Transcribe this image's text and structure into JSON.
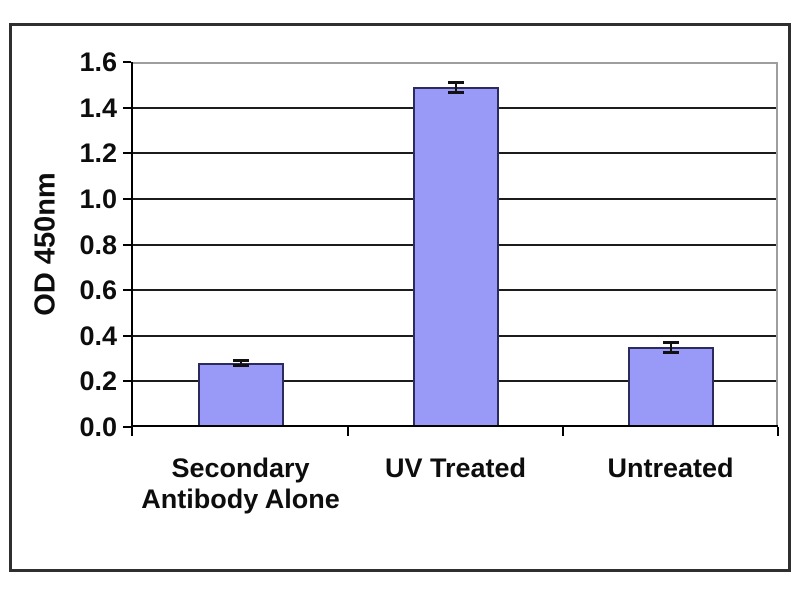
{
  "chart_data": {
    "type": "bar",
    "title": "",
    "xlabel": "",
    "ylabel": "OD 450nm",
    "categories": [
      "Secondary Antibody Alone",
      "UV Treated",
      "Untreated"
    ],
    "values": [
      0.28,
      1.49,
      0.35
    ],
    "errors": [
      0.01,
      0.02,
      0.02
    ],
    "ylim": [
      0,
      1.6
    ],
    "ytick_step": 0.2,
    "yticks": [
      "0.0",
      "0.2",
      "0.4",
      "0.6",
      "0.8",
      "1.0",
      "1.2",
      "1.4",
      "1.6"
    ],
    "grid": true,
    "legend_position": "none",
    "colors": {
      "bar_fill": "#9999f7",
      "bar_border": "#2b2b5e",
      "gridline": "#1c1c1c",
      "axis": "#000000",
      "plot_border": "#9e9e9e",
      "figure_border": "#2f2f2f",
      "background": "#ffffff",
      "error_bar": "#111111"
    }
  }
}
